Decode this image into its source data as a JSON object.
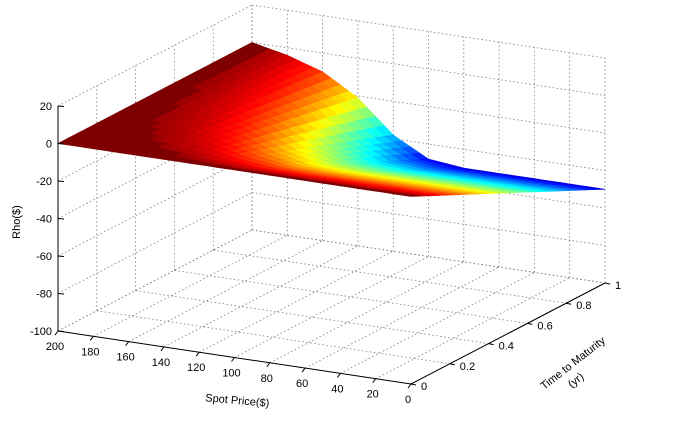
{
  "chart_data": {
    "type": "surface",
    "zlabel": "Rho($)",
    "xlabel": "Spot Price($)",
    "ylabel": [
      "Time to Maturity",
      "(yr)"
    ],
    "x_axis": {
      "range": [
        0,
        200
      ],
      "ticks": [
        "0",
        "20",
        "40",
        "60",
        "80",
        "100",
        "120",
        "140",
        "160",
        "180",
        "200"
      ]
    },
    "y_axis": {
      "range": [
        0,
        1
      ],
      "ticks": [
        "0",
        "0.2",
        "0.4",
        "0.6",
        "0.8",
        "1"
      ]
    },
    "z_axis": {
      "range": [
        -100,
        20
      ],
      "ticks": [
        "-100",
        "-80",
        "-60",
        "-40",
        "-20",
        "0",
        "20"
      ]
    },
    "grid": true,
    "colormap": "jet",
    "surface": {
      "spot_prices": [
        200,
        180,
        160,
        140,
        120,
        100,
        80,
        60,
        40,
        20,
        0
      ],
      "times_to_maturity": [
        0,
        0.2,
        0.4,
        0.6,
        0.8,
        1.0
      ],
      "rho_at_max_maturity": [
        0,
        -4,
        -10,
        -21,
        -38,
        -48,
        -50,
        -50,
        -50,
        -50,
        -50
      ],
      "rho_at_zero_maturity": 0
    }
  }
}
